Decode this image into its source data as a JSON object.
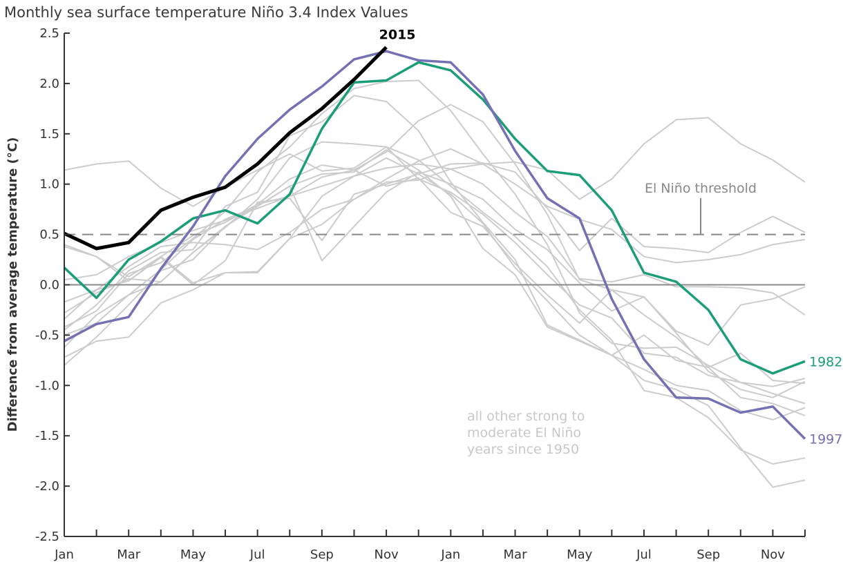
{
  "chart_data": {
    "type": "line",
    "title": "Monthly sea surface temperature Niño 3.4 Index Values",
    "xlabel": "",
    "ylabel": "Difference from average temperature (°C)",
    "ylim": [
      -2.5,
      2.5
    ],
    "yticks": [
      -2.5,
      -2.0,
      -1.5,
      -1.0,
      -0.5,
      0.0,
      0.5,
      1.0,
      1.5,
      2.0,
      2.5
    ],
    "ytick_labels": [
      "-2.5",
      "-2.0",
      "-1.5",
      "-1.0",
      "-0.5",
      "0.0",
      "0.5",
      "1.0",
      "1.5",
      "2.0",
      "2.5"
    ],
    "x": [
      "Jan",
      "Feb",
      "Mar",
      "Apr",
      "May",
      "Jun",
      "Jul",
      "Aug",
      "Sep",
      "Oct",
      "Nov",
      "Dec",
      "Jan",
      "Feb",
      "Mar",
      "Apr",
      "May",
      "Jun",
      "Jul",
      "Aug",
      "Sep",
      "Oct",
      "Nov",
      "Dec"
    ],
    "xtick_labels": [
      "Jan",
      "",
      "Mar",
      "",
      "May",
      "",
      "Jul",
      "",
      "Sep",
      "",
      "Nov",
      "",
      "Jan",
      "",
      "Mar",
      "",
      "May",
      "",
      "Jul",
      "",
      "Sep",
      "",
      "Nov",
      ""
    ],
    "grid": false,
    "threshold": {
      "value": 0.5,
      "label": "El Niño threshold",
      "style": "dashed"
    },
    "zero_line": 0.0,
    "series": [
      {
        "name": "2015",
        "color": "#000000",
        "highlight": true,
        "values": [
          0.51,
          0.36,
          0.42,
          0.74,
          0.87,
          0.97,
          1.2,
          1.51,
          1.75,
          2.04,
          2.36,
          null,
          null,
          null,
          null,
          null,
          null,
          null,
          null,
          null,
          null,
          null,
          null,
          null
        ]
      },
      {
        "name": "1997",
        "color": "#7570b3",
        "highlight": true,
        "values": [
          -0.56,
          -0.39,
          -0.32,
          0.16,
          0.58,
          1.08,
          1.45,
          1.74,
          1.97,
          2.24,
          2.32,
          2.23,
          2.21,
          1.89,
          1.33,
          0.86,
          0.66,
          -0.14,
          -0.74,
          -1.12,
          -1.13,
          -1.27,
          -1.21,
          -1.53
        ]
      },
      {
        "name": "1982",
        "color": "#1b9e77",
        "highlight": true,
        "values": [
          0.17,
          -0.13,
          0.25,
          0.43,
          0.66,
          0.74,
          0.61,
          0.9,
          1.55,
          2.01,
          2.03,
          2.21,
          2.13,
          1.84,
          1.45,
          1.13,
          1.09,
          0.74,
          0.12,
          0.03,
          -0.25,
          -0.74,
          -0.88,
          -0.76
        ]
      },
      {
        "name": "other-1",
        "color": "#cccccc",
        "values": [
          1.14,
          1.2,
          1.23,
          0.96,
          0.78,
          0.97,
          1.14,
          1.3,
          1.13,
          1.16,
          1.37,
          1.24,
          0.98,
          0.72,
          0.48,
          0.18,
          -0.25,
          -0.55,
          -1.05,
          -1.12,
          -1.32,
          -1.64,
          -1.78,
          -1.72
        ]
      },
      {
        "name": "other-2",
        "color": "#cccccc",
        "values": [
          0.38,
          0.28,
          0.08,
          0.28,
          0.02,
          0.12,
          0.13,
          0.46,
          0.88,
          1.08,
          1.26,
          1.1,
          0.9,
          0.61,
          0.17,
          -0.16,
          -0.5,
          -0.7,
          -0.84,
          -1.0,
          -1.05,
          -1.25,
          -1.34,
          -1.22
        ]
      },
      {
        "name": "other-3",
        "color": "#cccccc",
        "values": [
          -0.17,
          -0.05,
          0.18,
          0.38,
          0.42,
          0.4,
          0.35,
          0.52,
          0.75,
          0.85,
          1.05,
          1.23,
          1.35,
          1.2,
          1.0,
          0.78,
          0.65,
          0.55,
          0.28,
          0.22,
          0.25,
          0.3,
          0.4,
          0.45
        ]
      },
      {
        "name": "other-4",
        "color": "#cccccc",
        "values": [
          -0.72,
          -0.56,
          -0.52,
          -0.18,
          -0.05,
          0.12,
          0.12,
          0.46,
          0.6,
          0.85,
          1.02,
          1.04,
          1.15,
          1.2,
          1.22,
          1.14,
          0.85,
          1.05,
          1.4,
          1.64,
          1.66,
          1.4,
          1.24,
          1.02
        ]
      },
      {
        "name": "other-5",
        "color": "#cccccc",
        "values": [
          -0.34,
          -0.05,
          0.04,
          0.28,
          0.49,
          0.62,
          0.8,
          0.88,
          1.07,
          1.14,
          1.32,
          1.63,
          1.79,
          1.62,
          1.2,
          0.7,
          0.05,
          -0.05,
          -0.12,
          -0.48,
          -0.86,
          -1.04,
          -1.12,
          -0.96
        ]
      },
      {
        "name": "other-6",
        "color": "#cccccc",
        "values": [
          -0.45,
          -0.2,
          0.14,
          0.32,
          0.35,
          0.78,
          0.92,
          1.48,
          1.62,
          1.88,
          1.82,
          1.53,
          1.02,
          0.62,
          0.25,
          -0.4,
          -0.55,
          -0.7,
          -0.5,
          -0.75,
          -0.82,
          -0.68,
          -0.95,
          -0.98
        ]
      },
      {
        "name": "other-7",
        "color": "#cccccc",
        "values": [
          -0.42,
          -0.26,
          0.11,
          0.22,
          0.46,
          0.73,
          1.12,
          1.37,
          1.7,
          1.95,
          2.02,
          2.03,
          1.73,
          1.3,
          0.9,
          0.4,
          -0.28,
          -0.58,
          -0.63,
          -0.62,
          -0.8,
          -0.97,
          -1.01,
          -0.93
        ]
      },
      {
        "name": "other-8",
        "color": "#cccccc",
        "values": [
          -0.62,
          -0.3,
          -0.1,
          0.03,
          0.32,
          0.57,
          0.85,
          1.26,
          1.42,
          1.4,
          1.37,
          1.05,
          0.92,
          0.7,
          0.42,
          0.1,
          -0.2,
          -0.33,
          -0.68,
          -0.72,
          -0.9,
          -0.97,
          -1.08,
          -1.18
        ]
      },
      {
        "name": "other-9",
        "color": "#cccccc",
        "values": [
          -0.8,
          -0.52,
          -0.2,
          0.14,
          0.25,
          0.58,
          0.78,
          0.98,
          1.1,
          1.12,
          1.34,
          1.14,
          0.88,
          0.36,
          0.1,
          -0.42,
          -0.56,
          -0.7,
          -0.95,
          -1.04,
          -1.2,
          -1.62,
          -2.01,
          -1.94
        ]
      },
      {
        "name": "other-10",
        "color": "#cccccc",
        "values": [
          0.4,
          0.28,
          0.04,
          0.27,
          0.0,
          0.24,
          0.82,
          0.86,
          0.44,
          0.9,
          1.0,
          1.1,
          1.2,
          1.21,
          1.12,
          0.76,
          0.34,
          0.66,
          0.38,
          0.36,
          0.32,
          0.52,
          0.68,
          0.52
        ]
      },
      {
        "name": "other-11",
        "color": "#cccccc",
        "values": [
          -0.28,
          -0.08,
          0.06,
          0.03,
          0.32,
          0.58,
          0.8,
          1.05,
          1.19,
          1.14,
          0.98,
          1.06,
          0.72,
          0.58,
          0.21,
          -0.1,
          -0.38,
          -0.05,
          -0.3,
          -0.52,
          -0.82,
          -1.12,
          -1.18,
          -1.3
        ]
      },
      {
        "name": "other-12",
        "color": "#cccccc",
        "values": [
          0.05,
          0.1,
          0.28,
          0.42,
          0.54,
          0.64,
          0.76,
          0.88,
          0.98,
          1.08,
          1.16,
          1.2,
          1.15,
          1.0,
          0.72,
          0.48,
          0.06,
          0.03,
          0.1,
          -0.02,
          -0.02,
          -0.03,
          -0.08,
          -0.3
        ]
      },
      {
        "name": "other-13",
        "color": "#cccccc",
        "values": [
          -0.5,
          -0.38,
          -0.1,
          0.15,
          0.45,
          0.65,
          0.78,
          0.98,
          0.24,
          0.58,
          0.92,
          1.12,
          1.0,
          0.85,
          0.55,
          0.35,
          0.02,
          -0.26,
          -0.12,
          -0.46,
          -0.6,
          -0.2,
          -0.14,
          -0.02
        ]
      }
    ],
    "annotations": [
      {
        "text": "2015",
        "color": "#000000",
        "anchor_series": "2015"
      },
      {
        "text": "1997",
        "color": "#7570b3",
        "anchor_series": "1997"
      },
      {
        "text": "1982",
        "color": "#1b9e77",
        "anchor_series": "1982"
      },
      {
        "text": "El Niño threshold",
        "color": "#888888"
      },
      {
        "text_lines": [
          "all other strong to",
          "moderate El Niño",
          "years since 1950"
        ],
        "color": "#c8c8c8"
      }
    ],
    "legend": "none (direct labels)"
  }
}
